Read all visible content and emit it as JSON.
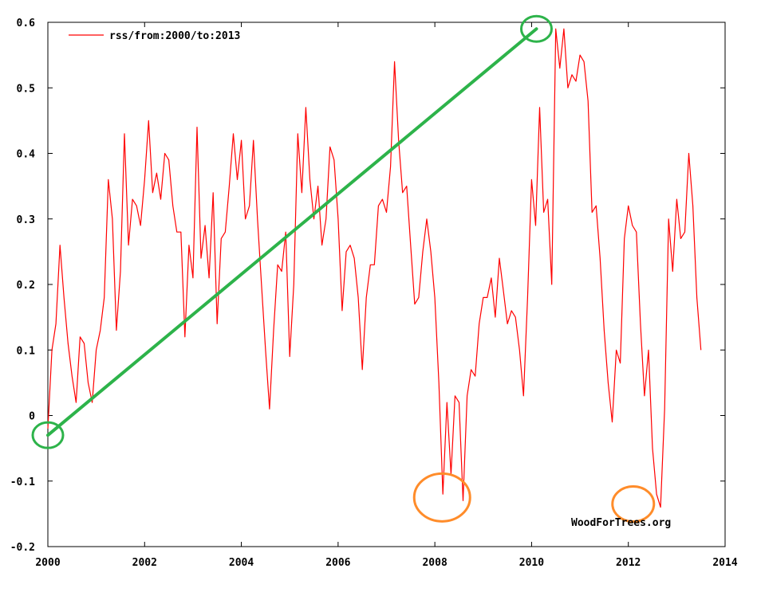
{
  "chart_data": {
    "type": "line",
    "title": "",
    "xlabel": "",
    "ylabel": "",
    "xlim": [
      2000,
      2014
    ],
    "ylim": [
      -0.2,
      0.6
    ],
    "x_ticks": [
      "2000",
      "2002",
      "2004",
      "2006",
      "2008",
      "2010",
      "2012",
      "2014"
    ],
    "y_ticks": [
      "-0.2",
      "-0.1",
      "0",
      "0.1",
      "0.2",
      "0.3",
      "0.4",
      "0.5",
      "0.6"
    ],
    "grid": false,
    "legend_position": "top-left",
    "credit": "WoodForTrees.org",
    "colors": {
      "series": "#ff0000",
      "trend": "#2db34a",
      "annotation": "#ff8c2a",
      "axes": "#000000"
    },
    "series": [
      {
        "name": "rss/from:2000/to:2013",
        "x_start": 2000,
        "step": 0.083333,
        "values": [
          -0.02,
          0.1,
          0.14,
          0.26,
          0.18,
          0.11,
          0.06,
          0.02,
          0.12,
          0.11,
          0.05,
          0.02,
          0.1,
          0.13,
          0.18,
          0.36,
          0.3,
          0.13,
          0.22,
          0.43,
          0.26,
          0.33,
          0.32,
          0.29,
          0.36,
          0.45,
          0.34,
          0.37,
          0.33,
          0.4,
          0.39,
          0.32,
          0.28,
          0.28,
          0.12,
          0.26,
          0.21,
          0.44,
          0.24,
          0.29,
          0.21,
          0.34,
          0.14,
          0.27,
          0.28,
          0.35,
          0.43,
          0.36,
          0.42,
          0.3,
          0.32,
          0.42,
          0.3,
          0.2,
          0.1,
          0.01,
          0.13,
          0.23,
          0.22,
          0.28,
          0.09,
          0.2,
          0.43,
          0.34,
          0.47,
          0.36,
          0.3,
          0.35,
          0.26,
          0.3,
          0.41,
          0.39,
          0.3,
          0.16,
          0.25,
          0.26,
          0.24,
          0.18,
          0.07,
          0.18,
          0.23,
          0.23,
          0.32,
          0.33,
          0.31,
          0.38,
          0.54,
          0.42,
          0.34,
          0.35,
          0.26,
          0.17,
          0.18,
          0.25,
          0.3,
          0.25,
          0.18,
          0.05,
          -0.12,
          0.02,
          -0.09,
          0.03,
          0.02,
          -0.13,
          0.03,
          0.07,
          0.06,
          0.14,
          0.18,
          0.18,
          0.21,
          0.15,
          0.24,
          0.19,
          0.14,
          0.16,
          0.15,
          0.1,
          0.03,
          0.18,
          0.36,
          0.29,
          0.47,
          0.31,
          0.33,
          0.2,
          0.59,
          0.53,
          0.59,
          0.5,
          0.52,
          0.51,
          0.55,
          0.54,
          0.48,
          0.31,
          0.32,
          0.24,
          0.13,
          0.05,
          -0.01,
          0.1,
          0.08,
          0.27,
          0.32,
          0.29,
          0.28,
          0.14,
          0.03,
          0.1,
          -0.05,
          -0.12,
          -0.14,
          0.01,
          0.3,
          0.22,
          0.33,
          0.27,
          0.28,
          0.4,
          0.32,
          0.18,
          0.1
        ]
      }
    ],
    "annotations": {
      "trend_line": {
        "from": [
          2000,
          -0.03
        ],
        "to": [
          2010.1,
          0.59
        ]
      },
      "circles": [
        {
          "x": 2000,
          "y": -0.03,
          "color": "green"
        },
        {
          "x": 2010.1,
          "y": 0.59,
          "color": "green"
        },
        {
          "x": 2008.15,
          "y": -0.125,
          "color": "orange"
        },
        {
          "x": 2012.1,
          "y": -0.135,
          "color": "orange"
        }
      ]
    }
  }
}
